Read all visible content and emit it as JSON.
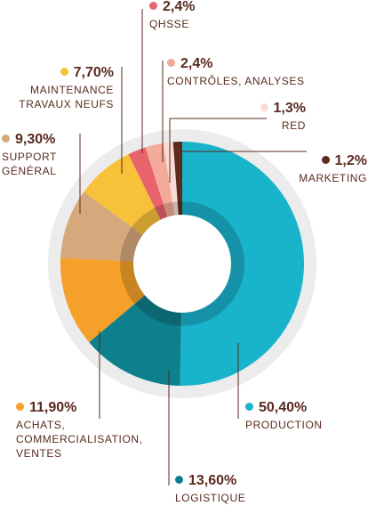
{
  "chart_data": {
    "type": "donut",
    "categories": [
      "PRODUCTION",
      "LOGISTIQUE",
      "ACHATS,\nCOMMERCIALISATION,\nVENTES",
      "SUPPORT\nGÉNÉRAL",
      "MAINTENANCE\nTRAVAUX NEUFS",
      "QHSSE",
      "CONTRÔLES, ANALYSES",
      "RED",
      "MARKETING"
    ],
    "values": [
      50.4,
      13.6,
      11.9,
      9.3,
      7.7,
      2.4,
      2.4,
      1.3,
      1.2
    ],
    "value_labels": [
      "50,40%",
      "13,60%",
      "11,90%",
      "9,30%",
      "7,70%",
      "2,4%",
      "2,4%",
      "1,3%",
      "1,2%"
    ],
    "colors": [
      "#1ab3cc",
      "#0e7f8c",
      "#f5a02a",
      "#d6a97c",
      "#f8c13a",
      "#e8636b",
      "#f3aa98",
      "#f9dad6",
      "#5b2b1d"
    ]
  }
}
